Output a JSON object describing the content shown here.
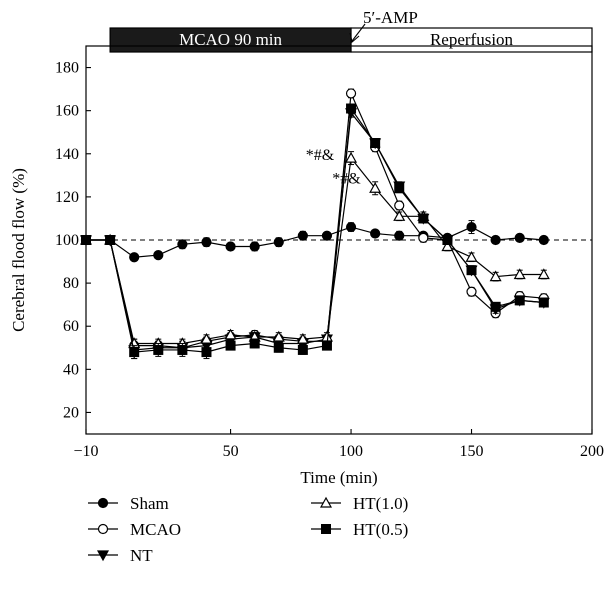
{
  "chart_data": {
    "type": "line",
    "xlabel": "Time (min)",
    "ylabel": "Cerebral flood flow (%)",
    "xlim": [
      -10,
      200
    ],
    "ylim": [
      10,
      190
    ],
    "xticks": [
      -10,
      50,
      100,
      150,
      200
    ],
    "yticks": [
      20,
      40,
      60,
      80,
      100,
      120,
      140,
      160,
      180
    ],
    "xtick_labels": [
      "−10",
      "50",
      "100",
      "150",
      "200"
    ],
    "ytick_labels": [
      "20",
      "40",
      "60",
      "80",
      "100",
      "120",
      "140",
      "160",
      "180"
    ],
    "reference_line": 100,
    "phases": [
      {
        "label": "MCAO 90 min",
        "start": 0,
        "end": 100,
        "fill": "#1a1a1a",
        "text_color": "#ffffff"
      },
      {
        "label": "Reperfusion",
        "start": 100,
        "end": 200,
        "fill": "#ffffff",
        "text_color": "#000000"
      }
    ],
    "arrow_annotation": {
      "label": "5′-AMP",
      "x": 100
    },
    "annotations": [
      {
        "text": "*#&",
        "x": 93,
        "y": 140
      },
      {
        "text": "*#&",
        "x": 104,
        "y": 129
      }
    ],
    "x": [
      -10,
      0,
      10,
      20,
      30,
      40,
      50,
      60,
      70,
      80,
      90,
      100,
      110,
      120,
      130,
      140,
      150,
      160,
      170,
      180
    ],
    "series": [
      {
        "name": "Sham",
        "marker": "circle-filled",
        "values": [
          100,
          100,
          92,
          93,
          98,
          99,
          97,
          97,
          99,
          102,
          102,
          106,
          103,
          102,
          102,
          101,
          106,
          100,
          101,
          100
        ],
        "errors": [
          0,
          0,
          1,
          1,
          2,
          2,
          1,
          2,
          2,
          2,
          1,
          2,
          1,
          2,
          1,
          1,
          3,
          1,
          1,
          1
        ]
      },
      {
        "name": "MCAO",
        "marker": "circle-open",
        "values": [
          100,
          100,
          51,
          51,
          50,
          53,
          55,
          56,
          54,
          53,
          53,
          168,
          143,
          116,
          101,
          100,
          76,
          66,
          74,
          73
        ],
        "errors": [
          0,
          0,
          3,
          2,
          3,
          2,
          2,
          2,
          2,
          2,
          3,
          2,
          2,
          2,
          2,
          2,
          2,
          2,
          2,
          2
        ]
      },
      {
        "name": "NT",
        "marker": "triangle-down-filled",
        "values": [
          100,
          100,
          49,
          50,
          50,
          51,
          54,
          55,
          52,
          52,
          54,
          159,
          145,
          125,
          110,
          100,
          86,
          68,
          72,
          71
        ],
        "errors": [
          0,
          0,
          4,
          3,
          3,
          3,
          2,
          2,
          2,
          2,
          2,
          2,
          2,
          2,
          2,
          2,
          2,
          2,
          2,
          2
        ]
      },
      {
        "name": "HT(1.0)",
        "marker": "triangle-up-open",
        "values": [
          100,
          100,
          52,
          52,
          52,
          54,
          56,
          55,
          55,
          54,
          55,
          138,
          124,
          111,
          111,
          97,
          92,
          83,
          84,
          84
        ],
        "errors": [
          0,
          0,
          2,
          2,
          2,
          2,
          2,
          2,
          2,
          2,
          2,
          3,
          3,
          2,
          2,
          2,
          2,
          2,
          2,
          2
        ]
      },
      {
        "name": "HT(0.5)",
        "marker": "square-filled",
        "values": [
          100,
          100,
          48,
          49,
          49,
          48,
          51,
          52,
          50,
          49,
          51,
          161,
          145,
          124,
          110,
          100,
          86,
          69,
          72,
          71
        ],
        "errors": [
          0,
          0,
          3,
          3,
          3,
          3,
          2,
          2,
          2,
          2,
          2,
          2,
          2,
          2,
          2,
          2,
          2,
          2,
          2,
          2
        ]
      }
    ],
    "legend": {
      "placement": "bottom"
    }
  }
}
